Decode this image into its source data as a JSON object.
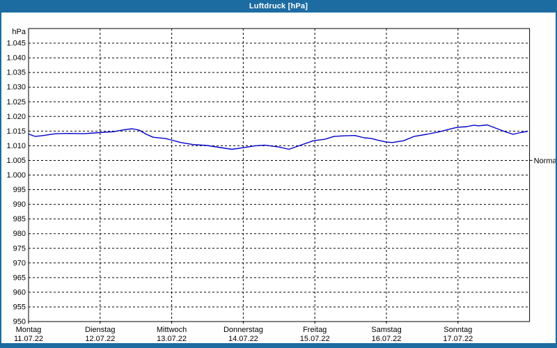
{
  "window": {
    "title": "Luftdruck [hPa]"
  },
  "colors": {
    "frame_blue": "#1c6ba1",
    "title_text": "#ffffff",
    "background": "#fdfefd",
    "plot_background": "#ffffff",
    "grid": "#000000",
    "axis": "#000000",
    "line": "#0000c8",
    "text": "#000000"
  },
  "chart_data": {
    "type": "line",
    "title": "Luftdruck [hPa]",
    "ylabel": "hPa",
    "ylim": [
      950,
      1050
    ],
    "grid": true,
    "y_axis": {
      "unit_label": "hPa",
      "min": 950,
      "max": 1050,
      "tick_step": 5,
      "ticks": [
        {
          "label": "1.045",
          "value": 1045
        },
        {
          "label": "1.040",
          "value": 1040
        },
        {
          "label": "1.035",
          "value": 1035
        },
        {
          "label": "1.030",
          "value": 1030
        },
        {
          "label": "1.025",
          "value": 1025
        },
        {
          "label": "1.020",
          "value": 1020
        },
        {
          "label": "1.015",
          "value": 1015
        },
        {
          "label": "1.010",
          "value": 1010
        },
        {
          "label": "1.005",
          "value": 1005
        },
        {
          "label": "1.000",
          "value": 1000
        },
        {
          "label": "995",
          "value": 995
        },
        {
          "label": "990",
          "value": 990
        },
        {
          "label": "985",
          "value": 985
        },
        {
          "label": "980",
          "value": 980
        },
        {
          "label": "975",
          "value": 975
        },
        {
          "label": "970",
          "value": 970
        },
        {
          "label": "965",
          "value": 965
        },
        {
          "label": "960",
          "value": 960
        },
        {
          "label": "955",
          "value": 955
        },
        {
          "label": "950",
          "value": 950
        }
      ]
    },
    "x_axis": {
      "days_shown": 7,
      "days": [
        {
          "name": "Montag",
          "date": "11.07.22"
        },
        {
          "name": "Dienstag",
          "date": "12.07.22"
        },
        {
          "name": "Mittwoch",
          "date": "13.07.22"
        },
        {
          "name": "Donnerstag",
          "date": "14.07.22"
        },
        {
          "name": "Freitag",
          "date": "15.07.22"
        },
        {
          "name": "Samstag",
          "date": "16.07.22"
        },
        {
          "name": "Sonntag",
          "date": "17.07.22"
        }
      ]
    },
    "normal_marker": {
      "label": "Normal",
      "value": 1005
    },
    "series": [
      {
        "name": "Luftdruck",
        "color": "#0000c8",
        "points": [
          [
            0.0,
            1014.0
          ],
          [
            0.09,
            1013.2
          ],
          [
            0.18,
            1013.4
          ],
          [
            0.38,
            1014.1
          ],
          [
            0.57,
            1014.2
          ],
          [
            0.77,
            1014.1
          ],
          [
            0.99,
            1014.5
          ],
          [
            1.19,
            1014.8
          ],
          [
            1.35,
            1015.5
          ],
          [
            1.45,
            1015.8
          ],
          [
            1.55,
            1015.3
          ],
          [
            1.64,
            1014.0
          ],
          [
            1.74,
            1012.9
          ],
          [
            1.91,
            1012.5
          ],
          [
            1.99,
            1012.0
          ],
          [
            2.13,
            1011.1
          ],
          [
            2.3,
            1010.4
          ],
          [
            2.49,
            1010.1
          ],
          [
            2.65,
            1009.5
          ],
          [
            2.84,
            1008.8
          ],
          [
            2.99,
            1009.3
          ],
          [
            3.17,
            1010.0
          ],
          [
            3.3,
            1010.2
          ],
          [
            3.49,
            1009.6
          ],
          [
            3.64,
            1008.8
          ],
          [
            3.78,
            1010.0
          ],
          [
            3.98,
            1011.7
          ],
          [
            4.14,
            1012.2
          ],
          [
            4.27,
            1013.2
          ],
          [
            4.42,
            1013.4
          ],
          [
            4.56,
            1013.5
          ],
          [
            4.69,
            1012.7
          ],
          [
            4.79,
            1012.5
          ],
          [
            4.88,
            1011.9
          ],
          [
            4.99,
            1011.3
          ],
          [
            5.08,
            1011.1
          ],
          [
            5.24,
            1011.7
          ],
          [
            5.39,
            1013.2
          ],
          [
            5.56,
            1013.9
          ],
          [
            5.73,
            1014.7
          ],
          [
            5.92,
            1015.9
          ],
          [
            5.99,
            1016.3
          ],
          [
            6.12,
            1016.5
          ],
          [
            6.22,
            1017.0
          ],
          [
            6.29,
            1016.8
          ],
          [
            6.41,
            1017.1
          ],
          [
            6.54,
            1015.9
          ],
          [
            6.67,
            1014.7
          ],
          [
            6.77,
            1013.9
          ],
          [
            6.87,
            1014.5
          ],
          [
            6.97,
            1014.9
          ]
        ]
      }
    ]
  }
}
